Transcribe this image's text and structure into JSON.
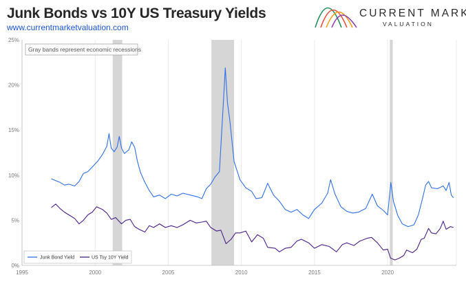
{
  "header": {
    "title": "Junk Bonds vs 10Y US Treasury Yields",
    "subtitle": "www.currentmarketvaluation.com"
  },
  "brand": {
    "name": "CURRENT MARKET",
    "tagline": "VALUATION",
    "logo_colors": [
      "#1f8f5a",
      "#e74c3c",
      "#f39c12",
      "#8e44ad"
    ]
  },
  "chart_data": {
    "type": "line",
    "xlim": [
      1995,
      2024.7
    ],
    "ylim": [
      0,
      25
    ],
    "xticks": [
      1995,
      2000,
      2005,
      2010,
      2015,
      2020
    ],
    "yticks": [
      0,
      5,
      10,
      15,
      20,
      25
    ],
    "xtick_labels": [
      "1995",
      "2000",
      "2005",
      "2010",
      "2015",
      "2020"
    ],
    "ytick_labels": [
      "0%",
      "5%",
      "10%",
      "15%",
      "20%",
      "25%"
    ],
    "grid": "vertical",
    "annotation": "Gray bands represent economic recessions",
    "recessions": [
      [
        2001.2,
        2001.85
      ],
      [
        2007.95,
        2009.5
      ],
      [
        2020.15,
        2020.35
      ]
    ],
    "legend_position": "bottom-left",
    "series": [
      {
        "name": "Junk Bond Yield",
        "color": "#2f6fe8",
        "points": [
          [
            1997.0,
            9.6
          ],
          [
            1997.3,
            9.4
          ],
          [
            1997.6,
            9.2
          ],
          [
            1997.9,
            8.9
          ],
          [
            1998.2,
            9.0
          ],
          [
            1998.6,
            8.8
          ],
          [
            1998.9,
            9.3
          ],
          [
            1999.2,
            10.2
          ],
          [
            1999.5,
            10.4
          ],
          [
            1999.8,
            10.9
          ],
          [
            2000.2,
            11.6
          ],
          [
            2000.5,
            12.3
          ],
          [
            2000.8,
            13.2
          ],
          [
            2000.95,
            14.6
          ],
          [
            2001.1,
            13.0
          ],
          [
            2001.3,
            12.6
          ],
          [
            2001.5,
            13.1
          ],
          [
            2001.65,
            14.3
          ],
          [
            2001.8,
            13.0
          ],
          [
            2002.0,
            12.4
          ],
          [
            2002.3,
            12.8
          ],
          [
            2002.5,
            13.7
          ],
          [
            2002.7,
            13.1
          ],
          [
            2002.9,
            11.5
          ],
          [
            2003.1,
            10.3
          ],
          [
            2003.4,
            9.2
          ],
          [
            2003.7,
            8.3
          ],
          [
            2004.0,
            7.6
          ],
          [
            2004.4,
            7.8
          ],
          [
            2004.8,
            7.4
          ],
          [
            2005.2,
            7.9
          ],
          [
            2005.6,
            7.7
          ],
          [
            2006.0,
            8.0
          ],
          [
            2006.5,
            7.8
          ],
          [
            2007.0,
            7.6
          ],
          [
            2007.3,
            7.4
          ],
          [
            2007.6,
            8.5
          ],
          [
            2007.9,
            9.0
          ],
          [
            2008.2,
            9.8
          ],
          [
            2008.5,
            10.4
          ],
          [
            2008.75,
            17.5
          ],
          [
            2008.9,
            21.9
          ],
          [
            2009.05,
            18.0
          ],
          [
            2009.2,
            16.2
          ],
          [
            2009.5,
            11.5
          ],
          [
            2009.9,
            9.5
          ],
          [
            2010.3,
            8.6
          ],
          [
            2010.7,
            8.2
          ],
          [
            2011.0,
            7.4
          ],
          [
            2011.4,
            7.5
          ],
          [
            2011.8,
            9.1
          ],
          [
            2012.2,
            7.8
          ],
          [
            2012.6,
            7.1
          ],
          [
            2013.0,
            6.2
          ],
          [
            2013.4,
            5.9
          ],
          [
            2013.8,
            6.2
          ],
          [
            2014.2,
            5.6
          ],
          [
            2014.6,
            5.2
          ],
          [
            2015.0,
            6.2
          ],
          [
            2015.5,
            6.9
          ],
          [
            2015.9,
            8.0
          ],
          [
            2016.1,
            9.5
          ],
          [
            2016.4,
            7.9
          ],
          [
            2016.8,
            6.5
          ],
          [
            2017.2,
            6.0
          ],
          [
            2017.6,
            5.8
          ],
          [
            2018.0,
            5.9
          ],
          [
            2018.5,
            6.3
          ],
          [
            2018.95,
            7.9
          ],
          [
            2019.3,
            6.6
          ],
          [
            2019.7,
            6.1
          ],
          [
            2020.0,
            5.6
          ],
          [
            2020.22,
            9.2
          ],
          [
            2020.4,
            7.1
          ],
          [
            2020.7,
            5.5
          ],
          [
            2021.0,
            4.6
          ],
          [
            2021.4,
            4.3
          ],
          [
            2021.8,
            4.5
          ],
          [
            2022.1,
            5.6
          ],
          [
            2022.4,
            7.5
          ],
          [
            2022.6,
            8.9
          ],
          [
            2022.8,
            9.3
          ],
          [
            2023.0,
            8.6
          ],
          [
            2023.4,
            8.5
          ],
          [
            2023.8,
            8.8
          ],
          [
            2024.0,
            8.3
          ],
          [
            2024.2,
            9.2
          ],
          [
            2024.35,
            7.8
          ],
          [
            2024.5,
            7.5
          ]
        ]
      },
      {
        "name": "US Tsy 10Y Yield",
        "color": "#4a1f8a",
        "points": [
          [
            1997.0,
            6.4
          ],
          [
            1997.3,
            6.8
          ],
          [
            1997.6,
            6.3
          ],
          [
            1997.9,
            5.9
          ],
          [
            1998.2,
            5.6
          ],
          [
            1998.6,
            5.2
          ],
          [
            1998.9,
            4.6
          ],
          [
            1999.2,
            5.0
          ],
          [
            1999.5,
            5.6
          ],
          [
            1999.8,
            5.9
          ],
          [
            2000.1,
            6.5
          ],
          [
            2000.5,
            6.2
          ],
          [
            2000.8,
            5.8
          ],
          [
            2001.1,
            5.1
          ],
          [
            2001.4,
            5.3
          ],
          [
            2001.8,
            4.6
          ],
          [
            2002.1,
            5.0
          ],
          [
            2002.4,
            5.1
          ],
          [
            2002.7,
            4.3
          ],
          [
            2003.0,
            4.0
          ],
          [
            2003.4,
            3.7
          ],
          [
            2003.7,
            4.4
          ],
          [
            2004.0,
            4.2
          ],
          [
            2004.4,
            4.6
          ],
          [
            2004.8,
            4.2
          ],
          [
            2005.2,
            4.4
          ],
          [
            2005.6,
            4.2
          ],
          [
            2006.0,
            4.5
          ],
          [
            2006.5,
            5.0
          ],
          [
            2006.9,
            4.7
          ],
          [
            2007.3,
            4.8
          ],
          [
            2007.6,
            4.9
          ],
          [
            2007.9,
            4.2
          ],
          [
            2008.3,
            3.8
          ],
          [
            2008.6,
            3.9
          ],
          [
            2008.95,
            2.4
          ],
          [
            2009.3,
            2.9
          ],
          [
            2009.6,
            3.6
          ],
          [
            2009.9,
            3.6
          ],
          [
            2010.3,
            3.8
          ],
          [
            2010.7,
            2.6
          ],
          [
            2011.1,
            3.4
          ],
          [
            2011.5,
            3.0
          ],
          [
            2011.8,
            2.0
          ],
          [
            2012.3,
            1.9
          ],
          [
            2012.6,
            1.5
          ],
          [
            2013.0,
            1.9
          ],
          [
            2013.4,
            2.0
          ],
          [
            2013.8,
            2.7
          ],
          [
            2014.1,
            2.9
          ],
          [
            2014.6,
            2.5
          ],
          [
            2015.0,
            1.9
          ],
          [
            2015.5,
            2.3
          ],
          [
            2016.0,
            2.1
          ],
          [
            2016.5,
            1.5
          ],
          [
            2016.9,
            2.3
          ],
          [
            2017.2,
            2.5
          ],
          [
            2017.7,
            2.2
          ],
          [
            2018.1,
            2.7
          ],
          [
            2018.6,
            3.0
          ],
          [
            2018.9,
            3.1
          ],
          [
            2019.3,
            2.5
          ],
          [
            2019.7,
            1.7
          ],
          [
            2020.0,
            1.8
          ],
          [
            2020.2,
            0.8
          ],
          [
            2020.5,
            0.6
          ],
          [
            2020.8,
            0.8
          ],
          [
            2021.1,
            1.1
          ],
          [
            2021.3,
            1.7
          ],
          [
            2021.7,
            1.4
          ],
          [
            2022.0,
            1.8
          ],
          [
            2022.3,
            2.9
          ],
          [
            2022.5,
            3.0
          ],
          [
            2022.8,
            4.1
          ],
          [
            2023.0,
            3.6
          ],
          [
            2023.3,
            3.5
          ],
          [
            2023.6,
            4.1
          ],
          [
            2023.8,
            4.9
          ],
          [
            2024.0,
            4.0
          ],
          [
            2024.3,
            4.3
          ],
          [
            2024.5,
            4.2
          ]
        ]
      }
    ]
  }
}
